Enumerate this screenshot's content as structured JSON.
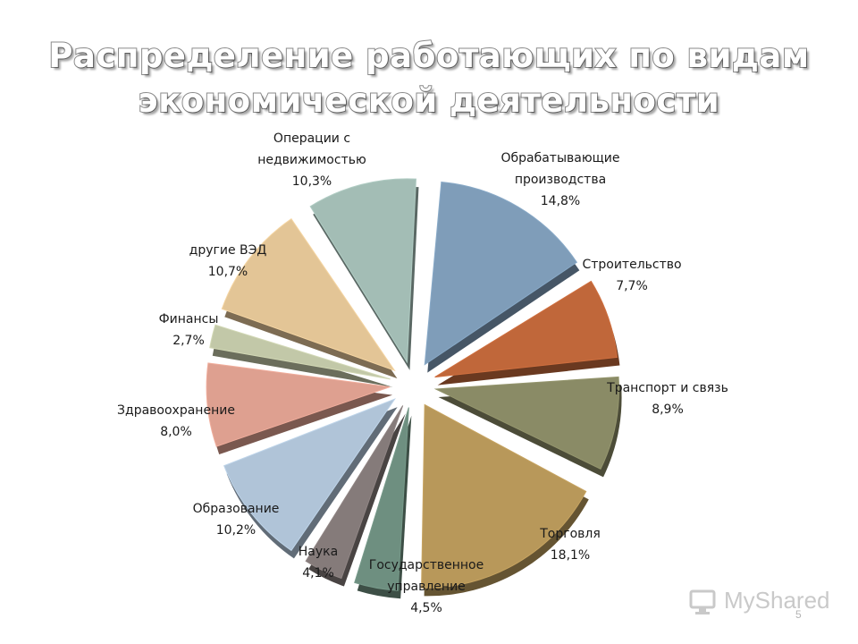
{
  "title": {
    "line1": "Распределение работающих по видам",
    "line2": "экономической деятельности"
  },
  "chart_data": {
    "type": "pie",
    "title": "Распределение работающих по видам экономической деятельности",
    "slices": [
      {
        "label_lines": [
          "Обрабатывающие",
          "производства"
        ],
        "value_text": "14,8%",
        "value": 14.8,
        "color": "#7f9db9"
      },
      {
        "label_lines": [
          "Строительство"
        ],
        "value_text": "7,7%",
        "value": 7.7,
        "color": "#c0673a"
      },
      {
        "label_lines": [
          "Транспорт и связь"
        ],
        "value_text": "8,9%",
        "value": 8.9,
        "color": "#8a8b66"
      },
      {
        "label_lines": [
          "Торговля"
        ],
        "value_text": "18,1%",
        "value": 18.1,
        "color": "#b8985a"
      },
      {
        "label_lines": [
          "Государственное",
          "управление"
        ],
        "value_text": "4,5%",
        "value": 4.5,
        "color": "#6e8f80"
      },
      {
        "label_lines": [
          "Наука"
        ],
        "value_text": "4,1%",
        "value": 4.1,
        "color": "#857b7a"
      },
      {
        "label_lines": [
          "Образование"
        ],
        "value_text": "10,2%",
        "value": 10.2,
        "color": "#b0c4d8"
      },
      {
        "label_lines": [
          "Здравоохранение"
        ],
        "value_text": "8,0%",
        "value": 8.0,
        "color": "#dea090"
      },
      {
        "label_lines": [
          "Финансы"
        ],
        "value_text": "2,7%",
        "value": 2.7,
        "color": "#c2c8a8"
      },
      {
        "label_lines": [
          "другие ВЭД"
        ],
        "value_text": "10,7%",
        "value": 10.7,
        "color": "#e3c596"
      },
      {
        "label_lines": [
          "Операции с",
          "недвижимостью"
        ],
        "value_text": "10,3%",
        "value": 10.3,
        "color": "#a3bdb5"
      }
    ]
  },
  "watermark": {
    "text": "MyShared"
  },
  "page_number": "5"
}
